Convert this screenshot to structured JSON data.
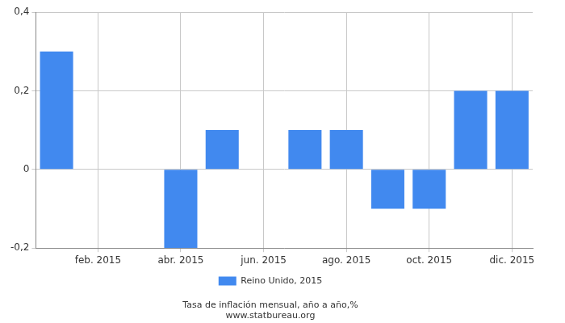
{
  "chart_data": {
    "type": "bar",
    "title": "Tasa de inflación mensual, año a año,%",
    "subtitle": "www.statbureau.org",
    "categories": [
      null,
      "feb. 2015",
      null,
      "abr. 2015",
      null,
      "jun. 2015",
      null,
      "ago. 2015",
      null,
      "oct. 2015",
      null,
      "dic. 2015"
    ],
    "series": [
      {
        "name": "Reino Unido, 2015",
        "color": "#4189ef",
        "values": [
          0.3,
          0,
          0,
          -0.2,
          0.1,
          0,
          0.1,
          0.1,
          -0.1,
          -0.1,
          0.2,
          0.2
        ]
      }
    ],
    "ylim": [
      -0.2,
      0.4
    ],
    "yticks": [
      {
        "value": -0.2,
        "label": "-0,2"
      },
      0,
      {
        "value": 0.2,
        "label": "0,2"
      },
      {
        "value": 0.4,
        "label": "0,4"
      }
    ],
    "grid": true,
    "legend": "bottom"
  }
}
